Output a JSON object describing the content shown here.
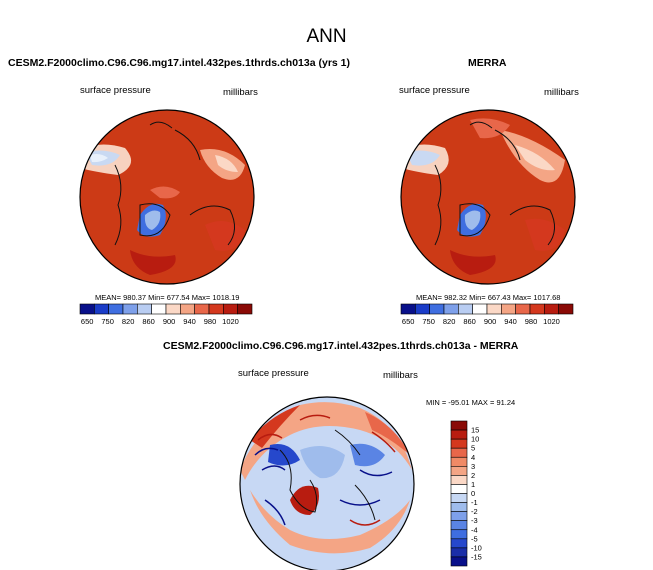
{
  "title": "ANN",
  "panels": {
    "model": {
      "header": "CESM2.F2000climo.C96.C96.mg17.intel.432pes.1thrds.ch013a (yrs 1)",
      "var_label": "surface pressure",
      "units": "millibars",
      "stats": "MEAN= 980.37    Min= 677.54   Max= 1018.19"
    },
    "obs": {
      "header": "MERRA",
      "var_label": "surface pressure",
      "units": "millibars",
      "stats": "MEAN= 982.32    Min= 667.43   Max= 1017.68"
    },
    "diff": {
      "header": "CESM2.F2000climo.C96.C96.mg17.intel.432pes.1thrds.ch013a - MERRA",
      "var_label": "surface pressure",
      "units": "millibars",
      "stats": "MIN = -95.01 MAX =  91.24"
    }
  },
  "colorbar_abs": {
    "ticks": [
      "650",
      "750",
      "820",
      "860",
      "900",
      "940",
      "980",
      "1020"
    ],
    "colors": [
      "#08108a",
      "#1a3cc8",
      "#3f6ee0",
      "#7ea0ea",
      "#b9cdf2",
      "#ffffff",
      "#fbd8c6",
      "#f4a585",
      "#e8674a",
      "#d4381e",
      "#b81c10",
      "#8a0a06"
    ]
  },
  "colorbar_diff": {
    "labels": [
      "15",
      "10",
      "5",
      "4",
      "3",
      "2",
      "1",
      "0",
      "-1",
      "-2",
      "-3",
      "-4",
      "-5",
      "-10",
      "-15"
    ],
    "colors": [
      "#8a0a06",
      "#b81c10",
      "#d4381e",
      "#e8674a",
      "#f08a66",
      "#f4a585",
      "#fbd8c6",
      "#ffffff",
      "#c7d8f4",
      "#9fbcec",
      "#7ea0ea",
      "#5a84e4",
      "#3f6ee0",
      "#2648cc",
      "#1a2ea8",
      "#08108a"
    ]
  }
}
